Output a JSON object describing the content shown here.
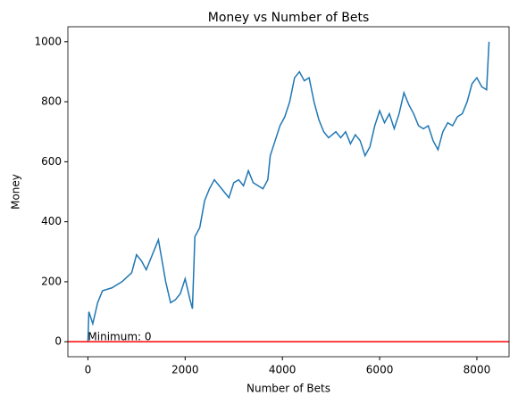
{
  "chart_data": {
    "type": "line",
    "title": "Money vs Number of Bets",
    "xlabel": "Number of Bets",
    "ylabel": "Money",
    "annotation": "Minimum: 0",
    "hline": {
      "value": 0,
      "color": "#ff0000"
    },
    "x": [
      0,
      20,
      100,
      200,
      300,
      500,
      700,
      900,
      1000,
      1100,
      1200,
      1300,
      1400,
      1450,
      1600,
      1700,
      1800,
      1900,
      2000,
      2100,
      2150,
      2200,
      2300,
      2400,
      2500,
      2600,
      2700,
      2800,
      2900,
      3000,
      3100,
      3200,
      3300,
      3400,
      3500,
      3600,
      3700,
      3750,
      3850,
      3950,
      4050,
      4150,
      4250,
      4350,
      4450,
      4550,
      4650,
      4750,
      4850,
      4950,
      5100,
      5200,
      5300,
      5400,
      5500,
      5600,
      5700,
      5800,
      5900,
      6000,
      6100,
      6200,
      6300,
      6400,
      6500,
      6600,
      6700,
      6800,
      6900,
      7000,
      7100,
      7200,
      7300,
      7400,
      7500,
      7600,
      7700,
      7800,
      7900,
      8000,
      8100,
      8200,
      8250
    ],
    "series": [
      {
        "name": "Money",
        "color": "#1f77b4",
        "values": [
          0,
          100,
          60,
          130,
          170,
          180,
          200,
          230,
          290,
          270,
          240,
          280,
          320,
          340,
          200,
          130,
          140,
          160,
          210,
          140,
          110,
          350,
          380,
          470,
          510,
          540,
          520,
          500,
          480,
          530,
          540,
          520,
          570,
          530,
          520,
          510,
          540,
          620,
          670,
          720,
          750,
          800,
          880,
          900,
          870,
          880,
          800,
          740,
          700,
          680,
          700,
          680,
          700,
          660,
          690,
          670,
          620,
          650,
          720,
          770,
          730,
          760,
          710,
          760,
          830,
          790,
          760,
          720,
          710,
          720,
          670,
          640,
          700,
          730,
          720,
          750,
          760,
          800,
          860,
          880,
          850,
          840,
          1000
        ]
      }
    ],
    "xlim": [
      -412,
      8662
    ],
    "ylim": [
      -50,
      1050
    ],
    "xticks": [
      0,
      2000,
      4000,
      6000,
      8000
    ],
    "yticks": [
      0,
      200,
      400,
      600,
      800,
      1000
    ],
    "grid": false
  }
}
